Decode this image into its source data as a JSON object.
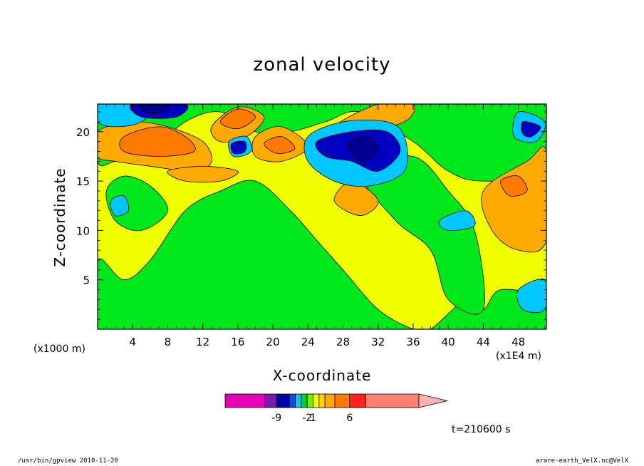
{
  "chart_data": {
    "type": "heatmap",
    "subtype": "filled-contour",
    "title": "zonal velocity",
    "xlabel": "X-coordinate",
    "ylabel": "Z-coordinate",
    "x_unit_label": "(x1000 m)",
    "x_unit_label_right": "(x1E4 m)",
    "x_ticks": [
      "4",
      "8",
      "12",
      "16",
      "20",
      "24",
      "28",
      "32",
      "36",
      "40",
      "44",
      "48"
    ],
    "x_tick_values": [
      4,
      8,
      12,
      16,
      20,
      24,
      28,
      32,
      36,
      40,
      44,
      48
    ],
    "y_ticks": [
      "5",
      "10",
      "15",
      "20"
    ],
    "y_tick_values": [
      5,
      10,
      15,
      20
    ],
    "xlim": [
      0,
      51.2
    ],
    "ylim": [
      0,
      22.8
    ],
    "grid": false,
    "timestamp": "t=210600 s",
    "colorbar": {
      "tick_labels": [
        "-9",
        "-2",
        "1",
        "6"
      ],
      "bins": [
        {
          "color": "#e600b4",
          "weight": 4
        },
        {
          "color": "#7a1ab0",
          "weight": 1.2
        },
        {
          "color": "#0000a8",
          "weight": 1.3
        },
        {
          "color": "#0a4de6",
          "weight": 0.6
        },
        {
          "color": "#00c8ff",
          "weight": 0.6
        },
        {
          "color": "#00d428",
          "weight": 0.6
        },
        {
          "color": "#7fe600",
          "weight": 0.6
        },
        {
          "color": "#f0ff00",
          "weight": 0.6
        },
        {
          "color": "#ffd200",
          "weight": 0.6
        },
        {
          "color": "#ffaa00",
          "weight": 1.0
        },
        {
          "color": "#ff7a00",
          "weight": 1.5
        },
        {
          "color": "#ff2020",
          "weight": 1.6
        },
        {
          "color": "#ff8070",
          "weight": 5.4
        }
      ],
      "extend_color": "#ffb0b0"
    },
    "field_colors": {
      "background": "#f0ff00",
      "green": "#00e81a",
      "orange": "#ffaa00",
      "darkorange": "#ff7a00",
      "cyan": "#00c8ff",
      "blue": "#0000c0",
      "navy": "#000090"
    },
    "regions": [
      {
        "level": "green",
        "points": [
          [
            0,
            0
          ],
          [
            51.2,
            0
          ],
          [
            51.2,
            3
          ],
          [
            46,
            4
          ],
          [
            44,
            2
          ],
          [
            42,
            3
          ],
          [
            38,
            0
          ],
          [
            36,
            0
          ],
          [
            32,
            2
          ],
          [
            28,
            6
          ],
          [
            25,
            9
          ],
          [
            22,
            12
          ],
          [
            18,
            15
          ],
          [
            14,
            14
          ],
          [
            10,
            12
          ],
          [
            6,
            7
          ],
          [
            3,
            5
          ],
          [
            0,
            7
          ]
        ]
      },
      {
        "level": "green",
        "points": [
          [
            0,
            22.8
          ],
          [
            51.2,
            22.8
          ],
          [
            51.2,
            16
          ],
          [
            44,
            15
          ],
          [
            40,
            16
          ],
          [
            36,
            19
          ],
          [
            30,
            22
          ],
          [
            26,
            21
          ],
          [
            22,
            20
          ],
          [
            18,
            20
          ],
          [
            14,
            22
          ],
          [
            10,
            21
          ],
          [
            6,
            18
          ],
          [
            2,
            17
          ],
          [
            0,
            17
          ]
        ]
      },
      {
        "level": "green",
        "points": [
          [
            1,
            14
          ],
          [
            3,
            15.5
          ],
          [
            6,
            14.5
          ],
          [
            8,
            12
          ],
          [
            5,
            10
          ],
          [
            2,
            11
          ]
        ]
      },
      {
        "level": "green",
        "points": [
          [
            30,
            16
          ],
          [
            36,
            17.5
          ],
          [
            40,
            14
          ],
          [
            43,
            10
          ],
          [
            44,
            2
          ],
          [
            40,
            3
          ],
          [
            38,
            8
          ],
          [
            34,
            11
          ]
        ]
      },
      {
        "level": "orange",
        "points": [
          [
            0,
            20
          ],
          [
            4,
            21
          ],
          [
            8,
            20.5
          ],
          [
            12,
            19
          ],
          [
            13,
            17
          ],
          [
            11,
            16
          ],
          [
            6,
            16.5
          ],
          [
            2,
            17
          ],
          [
            0,
            17.5
          ]
        ]
      },
      {
        "level": "orange",
        "points": [
          [
            13,
            20.5
          ],
          [
            16,
            22.5
          ],
          [
            19,
            21.5
          ],
          [
            17,
            19.5
          ],
          [
            14,
            19
          ]
        ]
      },
      {
        "level": "orange",
        "points": [
          [
            18,
            19.5
          ],
          [
            21,
            20.5
          ],
          [
            24,
            18.5
          ],
          [
            21,
            17
          ],
          [
            18,
            17.5
          ]
        ]
      },
      {
        "level": "orange",
        "points": [
          [
            27,
            20.5
          ],
          [
            32,
            22.8
          ],
          [
            36,
            22.8
          ],
          [
            35,
            21
          ],
          [
            30,
            20
          ]
        ]
      },
      {
        "level": "orange",
        "points": [
          [
            44,
            14
          ],
          [
            49,
            17
          ],
          [
            51.2,
            18
          ],
          [
            51.2,
            9
          ],
          [
            48,
            8
          ],
          [
            45,
            10
          ]
        ]
      },
      {
        "level": "orange",
        "points": [
          [
            8,
            16
          ],
          [
            12,
            16.5
          ],
          [
            16,
            16
          ],
          [
            14,
            15
          ],
          [
            10,
            15
          ]
        ]
      },
      {
        "level": "orange",
        "points": [
          [
            27,
            13
          ],
          [
            29,
            15
          ],
          [
            32,
            13
          ],
          [
            30,
            11.5
          ]
        ]
      },
      {
        "level": "darkorange",
        "points": [
          [
            3,
            19.5
          ],
          [
            7,
            20.5
          ],
          [
            10,
            19.5
          ],
          [
            11,
            18
          ],
          [
            7,
            17.5
          ],
          [
            3,
            18
          ]
        ]
      },
      {
        "level": "darkorange",
        "points": [
          [
            14,
            21
          ],
          [
            16,
            22.3
          ],
          [
            18,
            21.5
          ],
          [
            16,
            20.3
          ]
        ]
      },
      {
        "level": "darkorange",
        "points": [
          [
            19,
            18.8
          ],
          [
            21,
            19.5
          ],
          [
            22.5,
            18.3
          ],
          [
            20.5,
            17.8
          ]
        ]
      },
      {
        "level": "darkorange",
        "points": [
          [
            46,
            15
          ],
          [
            48,
            15.5
          ],
          [
            49,
            14
          ],
          [
            47,
            13.5
          ]
        ]
      },
      {
        "level": "cyan",
        "points": [
          [
            0,
            22.8
          ],
          [
            6,
            22.8
          ],
          [
            5,
            21
          ],
          [
            2,
            20.5
          ],
          [
            0,
            21
          ]
        ]
      },
      {
        "level": "cyan",
        "points": [
          [
            24,
            19.5
          ],
          [
            28,
            21
          ],
          [
            33,
            21
          ],
          [
            35,
            19.5
          ],
          [
            35,
            16
          ],
          [
            31,
            14.5
          ],
          [
            27,
            15
          ],
          [
            24,
            17
          ]
        ]
      },
      {
        "level": "cyan",
        "points": [
          [
            48,
            22
          ],
          [
            51,
            21
          ],
          [
            50,
            19
          ],
          [
            47.5,
            19.5
          ]
        ]
      },
      {
        "level": "cyan",
        "points": [
          [
            15,
            19
          ],
          [
            17,
            19.5
          ],
          [
            17.5,
            18
          ],
          [
            15.5,
            17.5
          ]
        ]
      },
      {
        "level": "cyan",
        "points": [
          [
            1.5,
            13
          ],
          [
            3,
            13.5
          ],
          [
            3.5,
            12
          ],
          [
            2,
            11.5
          ]
        ]
      },
      {
        "level": "cyan",
        "points": [
          [
            48,
            4
          ],
          [
            51,
            5
          ],
          [
            51,
            2
          ],
          [
            48.5,
            2
          ]
        ]
      },
      {
        "level": "cyan",
        "points": [
          [
            39,
            11
          ],
          [
            42,
            12
          ],
          [
            43,
            10.5
          ],
          [
            40,
            10
          ]
        ]
      },
      {
        "level": "blue",
        "points": [
          [
            4,
            22.8
          ],
          [
            10,
            22.8
          ],
          [
            9,
            21.5
          ],
          [
            5,
            21.5
          ]
        ]
      },
      {
        "level": "blue",
        "points": [
          [
            25,
            19
          ],
          [
            29,
            20
          ],
          [
            33,
            20
          ],
          [
            34.5,
            18
          ],
          [
            32,
            16
          ],
          [
            29,
            17
          ],
          [
            26,
            17.5
          ]
        ]
      },
      {
        "level": "blue",
        "points": [
          [
            48.5,
            21
          ],
          [
            50.5,
            20.5
          ],
          [
            49.5,
            19.5
          ],
          [
            48.5,
            19.8
          ]
        ]
      },
      {
        "level": "blue",
        "points": [
          [
            15.3,
            18.8
          ],
          [
            16.8,
            19
          ],
          [
            16.8,
            18
          ],
          [
            15.5,
            17.8
          ]
        ]
      },
      {
        "level": "navy",
        "points": [
          [
            28.5,
            18.8
          ],
          [
            31,
            19.5
          ],
          [
            32,
            18
          ],
          [
            30,
            17
          ]
        ]
      },
      {
        "level": "navy",
        "points": [
          [
            5,
            22.8
          ],
          [
            8,
            22.8
          ],
          [
            7.5,
            22
          ],
          [
            5.5,
            22
          ]
        ]
      }
    ]
  },
  "footer": {
    "left": "/usr/bin/gpview  2010-11-20",
    "right": "arare-earth_VelX.nc@VelX"
  }
}
